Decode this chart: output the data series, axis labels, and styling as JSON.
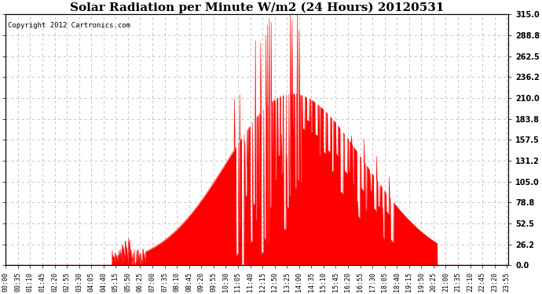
{
  "title": "Solar Radiation per Minute W/m2 (24 Hours) 20120531",
  "copyright": "Copyright 2012 Cartronics.com",
  "y_ticks": [
    0.0,
    26.2,
    52.5,
    78.8,
    105.0,
    131.2,
    157.5,
    183.8,
    210.0,
    236.2,
    262.5,
    288.8,
    315.0
  ],
  "y_min": 0.0,
  "y_max": 315.0,
  "fill_color": "#FF0000",
  "line_color": "#FF0000",
  "grid_color": "#BBBBBB",
  "background_color": "#FFFFFF",
  "title_fontsize": 11,
  "copyright_fontsize": 6.5,
  "tick_fontsize": 7,
  "x_label_interval_minutes": 35,
  "total_minutes": 1440,
  "sunrise_minute": 305,
  "sunset_minute": 1235,
  "peak_minute": 820,
  "peak_value": 315.0
}
